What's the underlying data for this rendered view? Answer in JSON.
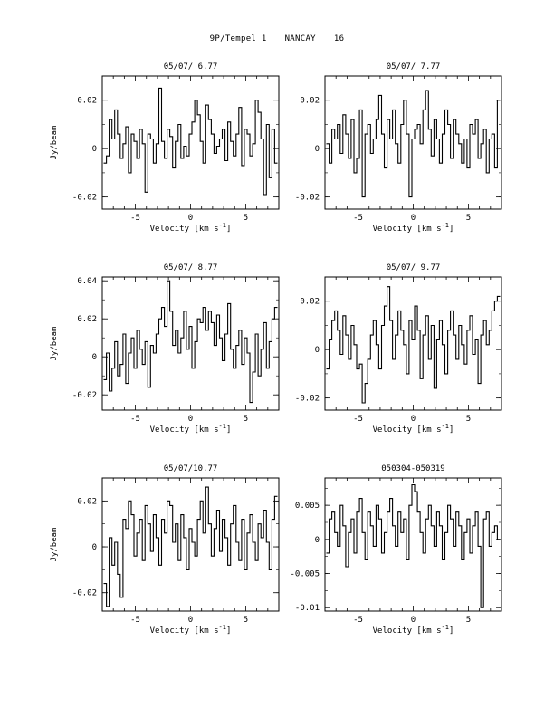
{
  "page": {
    "object": "9P/Tempel 1",
    "station": "NANCAY",
    "number": "16"
  },
  "chart_data": [
    {
      "type": "line",
      "title": "05/07/ 6.77",
      "xlabel": "Velocity [km s",
      "xlabel_sup": "-1",
      "xlabel_end": "]",
      "ylabel": "Jy/beam",
      "xlim": [
        -8,
        8
      ],
      "ylim": [
        -0.025,
        0.03
      ],
      "xticks": [
        "-5",
        "0",
        "5"
      ],
      "yticks": [
        "-0.02",
        "0",
        "0.02"
      ],
      "ytick_values": [
        -0.02,
        0,
        0.02
      ],
      "x": [
        -7.75,
        -7.5,
        -7.25,
        -7.0,
        -6.75,
        -6.5,
        -6.25,
        -6.0,
        -5.75,
        -5.5,
        -5.25,
        -5.0,
        -4.75,
        -4.5,
        -4.25,
        -4.0,
        -3.75,
        -3.5,
        -3.25,
        -3.0,
        -2.75,
        -2.5,
        -2.25,
        -2.0,
        -1.75,
        -1.5,
        -1.25,
        -1.0,
        -0.75,
        -0.5,
        -0.25,
        0.0,
        0.25,
        0.5,
        0.75,
        1.0,
        1.25,
        1.5,
        1.75,
        2.0,
        2.25,
        2.5,
        2.75,
        3.0,
        3.25,
        3.5,
        3.75,
        4.0,
        4.25,
        4.5,
        4.75,
        5.0,
        5.25,
        5.5,
        5.75,
        6.0,
        6.25,
        6.5,
        6.75,
        7.0,
        7.25,
        7.5,
        7.75
      ],
      "values": [
        -0.006,
        -0.003,
        0.012,
        0.004,
        0.016,
        0.006,
        -0.004,
        0.002,
        0.009,
        -0.01,
        0.006,
        0.003,
        -0.004,
        0.008,
        0.002,
        -0.018,
        0.006,
        0.004,
        -0.006,
        0.002,
        0.025,
        0.003,
        -0.004,
        0.008,
        0.005,
        -0.008,
        0.003,
        0.01,
        -0.004,
        0.001,
        -0.003,
        0.006,
        0.011,
        0.02,
        0.014,
        0.003,
        -0.006,
        0.018,
        0.012,
        0.006,
        -0.002,
        0.001,
        0.004,
        0.008,
        -0.005,
        0.011,
        0.003,
        -0.003,
        0.006,
        0.017,
        -0.007,
        0.008,
        0.006,
        -0.003,
        0.002,
        0.02,
        0.015,
        0.004,
        -0.019,
        0.01,
        -0.012,
        0.008,
        -0.006
      ]
    },
    {
      "type": "line",
      "title": "05/07/ 7.77",
      "xlabel": "Velocity [km s",
      "xlabel_sup": "-1",
      "xlabel_end": "]",
      "ylabel": "",
      "xlim": [
        -8,
        8
      ],
      "ylim": [
        -0.025,
        0.03
      ],
      "xticks": [
        "-5",
        "0",
        "5"
      ],
      "yticks": [
        "-0.02",
        "0",
        "0.02"
      ],
      "ytick_values": [
        -0.02,
        0,
        0.02
      ],
      "x": [
        -7.75,
        -7.5,
        -7.25,
        -7.0,
        -6.75,
        -6.5,
        -6.25,
        -6.0,
        -5.75,
        -5.5,
        -5.25,
        -5.0,
        -4.75,
        -4.5,
        -4.25,
        -4.0,
        -3.75,
        -3.5,
        -3.25,
        -3.0,
        -2.75,
        -2.5,
        -2.25,
        -2.0,
        -1.75,
        -1.5,
        -1.25,
        -1.0,
        -0.75,
        -0.5,
        -0.25,
        0.0,
        0.25,
        0.5,
        0.75,
        1.0,
        1.25,
        1.5,
        1.75,
        2.0,
        2.25,
        2.5,
        2.75,
        3.0,
        3.25,
        3.5,
        3.75,
        4.0,
        4.25,
        4.5,
        4.75,
        5.0,
        5.25,
        5.5,
        5.75,
        6.0,
        6.25,
        6.5,
        6.75,
        7.0,
        7.25,
        7.5,
        7.75
      ],
      "values": [
        0.002,
        -0.006,
        0.008,
        0.004,
        0.01,
        -0.002,
        0.014,
        0.006,
        -0.004,
        0.012,
        -0.01,
        -0.004,
        0.016,
        -0.02,
        0.006,
        0.01,
        -0.002,
        0.004,
        0.012,
        0.022,
        0.006,
        -0.008,
        0.012,
        0.004,
        0.016,
        0.002,
        -0.006,
        0.01,
        0.02,
        0.006,
        -0.02,
        0.004,
        0.008,
        0.01,
        0.002,
        0.016,
        0.024,
        0.008,
        -0.003,
        0.012,
        0.004,
        -0.006,
        0.006,
        0.016,
        0.01,
        -0.004,
        0.012,
        0.006,
        0.002,
        -0.006,
        0.004,
        -0.008,
        0.01,
        0.006,
        0.012,
        -0.004,
        0.002,
        0.008,
        -0.01,
        0.004,
        0.006,
        -0.008,
        0.02
      ]
    },
    {
      "type": "line",
      "title": "05/07/ 8.77",
      "xlabel": "Velocity [km s",
      "xlabel_sup": "-1",
      "xlabel_end": "]",
      "ylabel": "Jy/beam",
      "xlim": [
        -8,
        8
      ],
      "ylim": [
        -0.028,
        0.042
      ],
      "xticks": [
        "-5",
        "0",
        "5"
      ],
      "yticks": [
        "-0.02",
        "0",
        "0.02",
        "0.04"
      ],
      "ytick_values": [
        -0.02,
        0,
        0.02,
        0.04
      ],
      "x": [
        -7.75,
        -7.5,
        -7.25,
        -7.0,
        -6.75,
        -6.5,
        -6.25,
        -6.0,
        -5.75,
        -5.5,
        -5.25,
        -5.0,
        -4.75,
        -4.5,
        -4.25,
        -4.0,
        -3.75,
        -3.5,
        -3.25,
        -3.0,
        -2.75,
        -2.5,
        -2.25,
        -2.0,
        -1.75,
        -1.5,
        -1.25,
        -1.0,
        -0.75,
        -0.5,
        -0.25,
        0.0,
        0.25,
        0.5,
        0.75,
        1.0,
        1.25,
        1.5,
        1.75,
        2.0,
        2.25,
        2.5,
        2.75,
        3.0,
        3.25,
        3.5,
        3.75,
        4.0,
        4.25,
        4.5,
        4.75,
        5.0,
        5.25,
        5.5,
        5.75,
        6.0,
        6.25,
        6.5,
        6.75,
        7.0,
        7.25,
        7.5,
        7.75
      ],
      "values": [
        -0.012,
        0.002,
        -0.018,
        -0.006,
        0.008,
        -0.01,
        -0.004,
        0.012,
        -0.014,
        0.002,
        0.01,
        -0.006,
        0.014,
        0.004,
        -0.004,
        0.008,
        -0.016,
        0.006,
        0.002,
        0.012,
        0.02,
        0.026,
        0.016,
        0.04,
        0.024,
        0.006,
        0.014,
        0.002,
        0.01,
        0.024,
        0.004,
        0.016,
        -0.006,
        0.008,
        0.02,
        0.018,
        0.026,
        0.014,
        0.024,
        0.018,
        0.006,
        0.022,
        0.01,
        -0.002,
        0.012,
        0.028,
        0.004,
        -0.006,
        0.006,
        0.014,
        -0.004,
        0.01,
        0.002,
        -0.024,
        -0.008,
        0.012,
        -0.01,
        0.004,
        0.018,
        -0.006,
        0.008,
        0.02,
        0.026
      ]
    },
    {
      "type": "line",
      "title": "05/07/ 9.77",
      "xlabel": "Velocity [km s",
      "xlabel_sup": "-1",
      "xlabel_end": "]",
      "ylabel": "",
      "xlim": [
        -8,
        8
      ],
      "ylim": [
        -0.025,
        0.03
      ],
      "xticks": [
        "-5",
        "0",
        "5"
      ],
      "yticks": [
        "-0.02",
        "0",
        "0.02"
      ],
      "ytick_values": [
        -0.02,
        0,
        0.02
      ],
      "x": [
        -7.75,
        -7.5,
        -7.25,
        -7.0,
        -6.75,
        -6.5,
        -6.25,
        -6.0,
        -5.75,
        -5.5,
        -5.25,
        -5.0,
        -4.75,
        -4.5,
        -4.25,
        -4.0,
        -3.75,
        -3.5,
        -3.25,
        -3.0,
        -2.75,
        -2.5,
        -2.25,
        -2.0,
        -1.75,
        -1.5,
        -1.25,
        -1.0,
        -0.75,
        -0.5,
        -0.25,
        0.0,
        0.25,
        0.5,
        0.75,
        1.0,
        1.25,
        1.5,
        1.75,
        2.0,
        2.25,
        2.5,
        2.75,
        3.0,
        3.25,
        3.5,
        3.75,
        4.0,
        4.25,
        4.5,
        4.75,
        5.0,
        5.25,
        5.5,
        5.75,
        6.0,
        6.25,
        6.5,
        6.75,
        7.0,
        7.25,
        7.5,
        7.75
      ],
      "values": [
        -0.008,
        0.004,
        0.012,
        0.016,
        0.008,
        -0.002,
        0.014,
        0.006,
        -0.004,
        0.01,
        0.002,
        -0.008,
        -0.006,
        -0.022,
        -0.014,
        -0.004,
        0.006,
        0.012,
        0.002,
        -0.008,
        0.01,
        0.018,
        0.026,
        0.012,
        -0.004,
        0.006,
        0.016,
        0.008,
        0.002,
        -0.01,
        0.012,
        0.004,
        0.018,
        0.008,
        -0.012,
        0.006,
        0.014,
        -0.004,
        0.01,
        -0.016,
        0.004,
        0.012,
        0.002,
        -0.01,
        0.008,
        0.016,
        0.006,
        -0.004,
        0.01,
        0.002,
        -0.006,
        0.008,
        0.014,
        -0.002,
        0.004,
        -0.014,
        0.006,
        0.012,
        0.002,
        0.008,
        0.016,
        0.02,
        0.022
      ]
    },
    {
      "type": "line",
      "title": "05/07/10.77",
      "xlabel": "Velocity [km s",
      "xlabel_sup": "-1",
      "xlabel_end": "]",
      "ylabel": "Jy/beam",
      "xlim": [
        -8,
        8
      ],
      "ylim": [
        -0.028,
        0.03
      ],
      "xticks": [
        "-5",
        "0",
        "5"
      ],
      "yticks": [
        "-0.02",
        "0",
        "0.02"
      ],
      "ytick_values": [
        -0.02,
        0,
        0.02
      ],
      "x": [
        -7.75,
        -7.5,
        -7.25,
        -7.0,
        -6.75,
        -6.5,
        -6.25,
        -6.0,
        -5.75,
        -5.5,
        -5.25,
        -5.0,
        -4.75,
        -4.5,
        -4.25,
        -4.0,
        -3.75,
        -3.5,
        -3.25,
        -3.0,
        -2.75,
        -2.5,
        -2.25,
        -2.0,
        -1.75,
        -1.5,
        -1.25,
        -1.0,
        -0.75,
        -0.5,
        -0.25,
        0.0,
        0.25,
        0.5,
        0.75,
        1.0,
        1.25,
        1.5,
        1.75,
        2.0,
        2.25,
        2.5,
        2.75,
        3.0,
        3.25,
        3.5,
        3.75,
        4.0,
        4.25,
        4.5,
        4.75,
        5.0,
        5.25,
        5.5,
        5.75,
        6.0,
        6.25,
        6.5,
        6.75,
        7.0,
        7.25,
        7.5,
        7.75
      ],
      "values": [
        -0.016,
        -0.026,
        0.004,
        -0.008,
        0.002,
        -0.012,
        -0.022,
        0.012,
        0.008,
        0.02,
        0.014,
        -0.004,
        0.006,
        0.012,
        -0.006,
        0.018,
        0.01,
        -0.002,
        0.014,
        0.004,
        -0.008,
        0.012,
        0.006,
        0.02,
        0.018,
        0.002,
        0.01,
        -0.006,
        0.014,
        0.004,
        -0.01,
        0.008,
        0.002,
        -0.004,
        0.012,
        0.02,
        0.006,
        0.026,
        0.01,
        -0.004,
        0.008,
        0.016,
        -0.002,
        0.012,
        0.004,
        -0.008,
        0.01,
        0.018,
        0.002,
        -0.006,
        0.012,
        -0.01,
        0.006,
        0.014,
        0.002,
        -0.006,
        0.01,
        0.004,
        0.016,
        0.002,
        -0.01,
        0.012,
        0.022
      ]
    },
    {
      "type": "line",
      "title": "050304-050319",
      "xlabel": "Velocity [km s",
      "xlabel_sup": "-1",
      "xlabel_end": "]",
      "ylabel": "",
      "xlim": [
        -8,
        8
      ],
      "ylim": [
        -0.0105,
        0.009
      ],
      "xticks": [
        "-5",
        "0",
        "5"
      ],
      "yticks": [
        "-0.01",
        "-0.005",
        "0",
        "0.005"
      ],
      "ytick_values": [
        -0.01,
        -0.005,
        0,
        0.005
      ],
      "x": [
        -7.75,
        -7.5,
        -7.25,
        -7.0,
        -6.75,
        -6.5,
        -6.25,
        -6.0,
        -5.75,
        -5.5,
        -5.25,
        -5.0,
        -4.75,
        -4.5,
        -4.25,
        -4.0,
        -3.75,
        -3.5,
        -3.25,
        -3.0,
        -2.75,
        -2.5,
        -2.25,
        -2.0,
        -1.75,
        -1.5,
        -1.25,
        -1.0,
        -0.75,
        -0.5,
        -0.25,
        0.0,
        0.25,
        0.5,
        0.75,
        1.0,
        1.25,
        1.5,
        1.75,
        2.0,
        2.25,
        2.5,
        2.75,
        3.0,
        3.25,
        3.5,
        3.75,
        4.0,
        4.25,
        4.5,
        4.75,
        5.0,
        5.25,
        5.5,
        5.75,
        6.0,
        6.25,
        6.5,
        6.75,
        7.0,
        7.25,
        7.5,
        7.75
      ],
      "values": [
        -0.002,
        0.003,
        0.004,
        0.001,
        -0.001,
        0.005,
        0.002,
        -0.004,
        0.001,
        0.003,
        -0.002,
        0.004,
        0.006,
        0.001,
        -0.003,
        0.004,
        0.002,
        -0.001,
        0.005,
        0.003,
        -0.002,
        0.001,
        0.004,
        0.006,
        0.002,
        -0.001,
        0.004,
        0.001,
        0.003,
        -0.003,
        0.005,
        0.008,
        0.007,
        0.004,
        0.001,
        -0.002,
        0.003,
        0.005,
        0.002,
        -0.001,
        0.004,
        0.002,
        -0.003,
        0.001,
        0.005,
        0.003,
        -0.001,
        0.004,
        0.002,
        -0.003,
        0.001,
        0.003,
        -0.002,
        0.002,
        0.004,
        -0.001,
        -0.01,
        0.003,
        0.004,
        -0.001,
        0.001,
        0.002,
        0.0
      ]
    }
  ]
}
